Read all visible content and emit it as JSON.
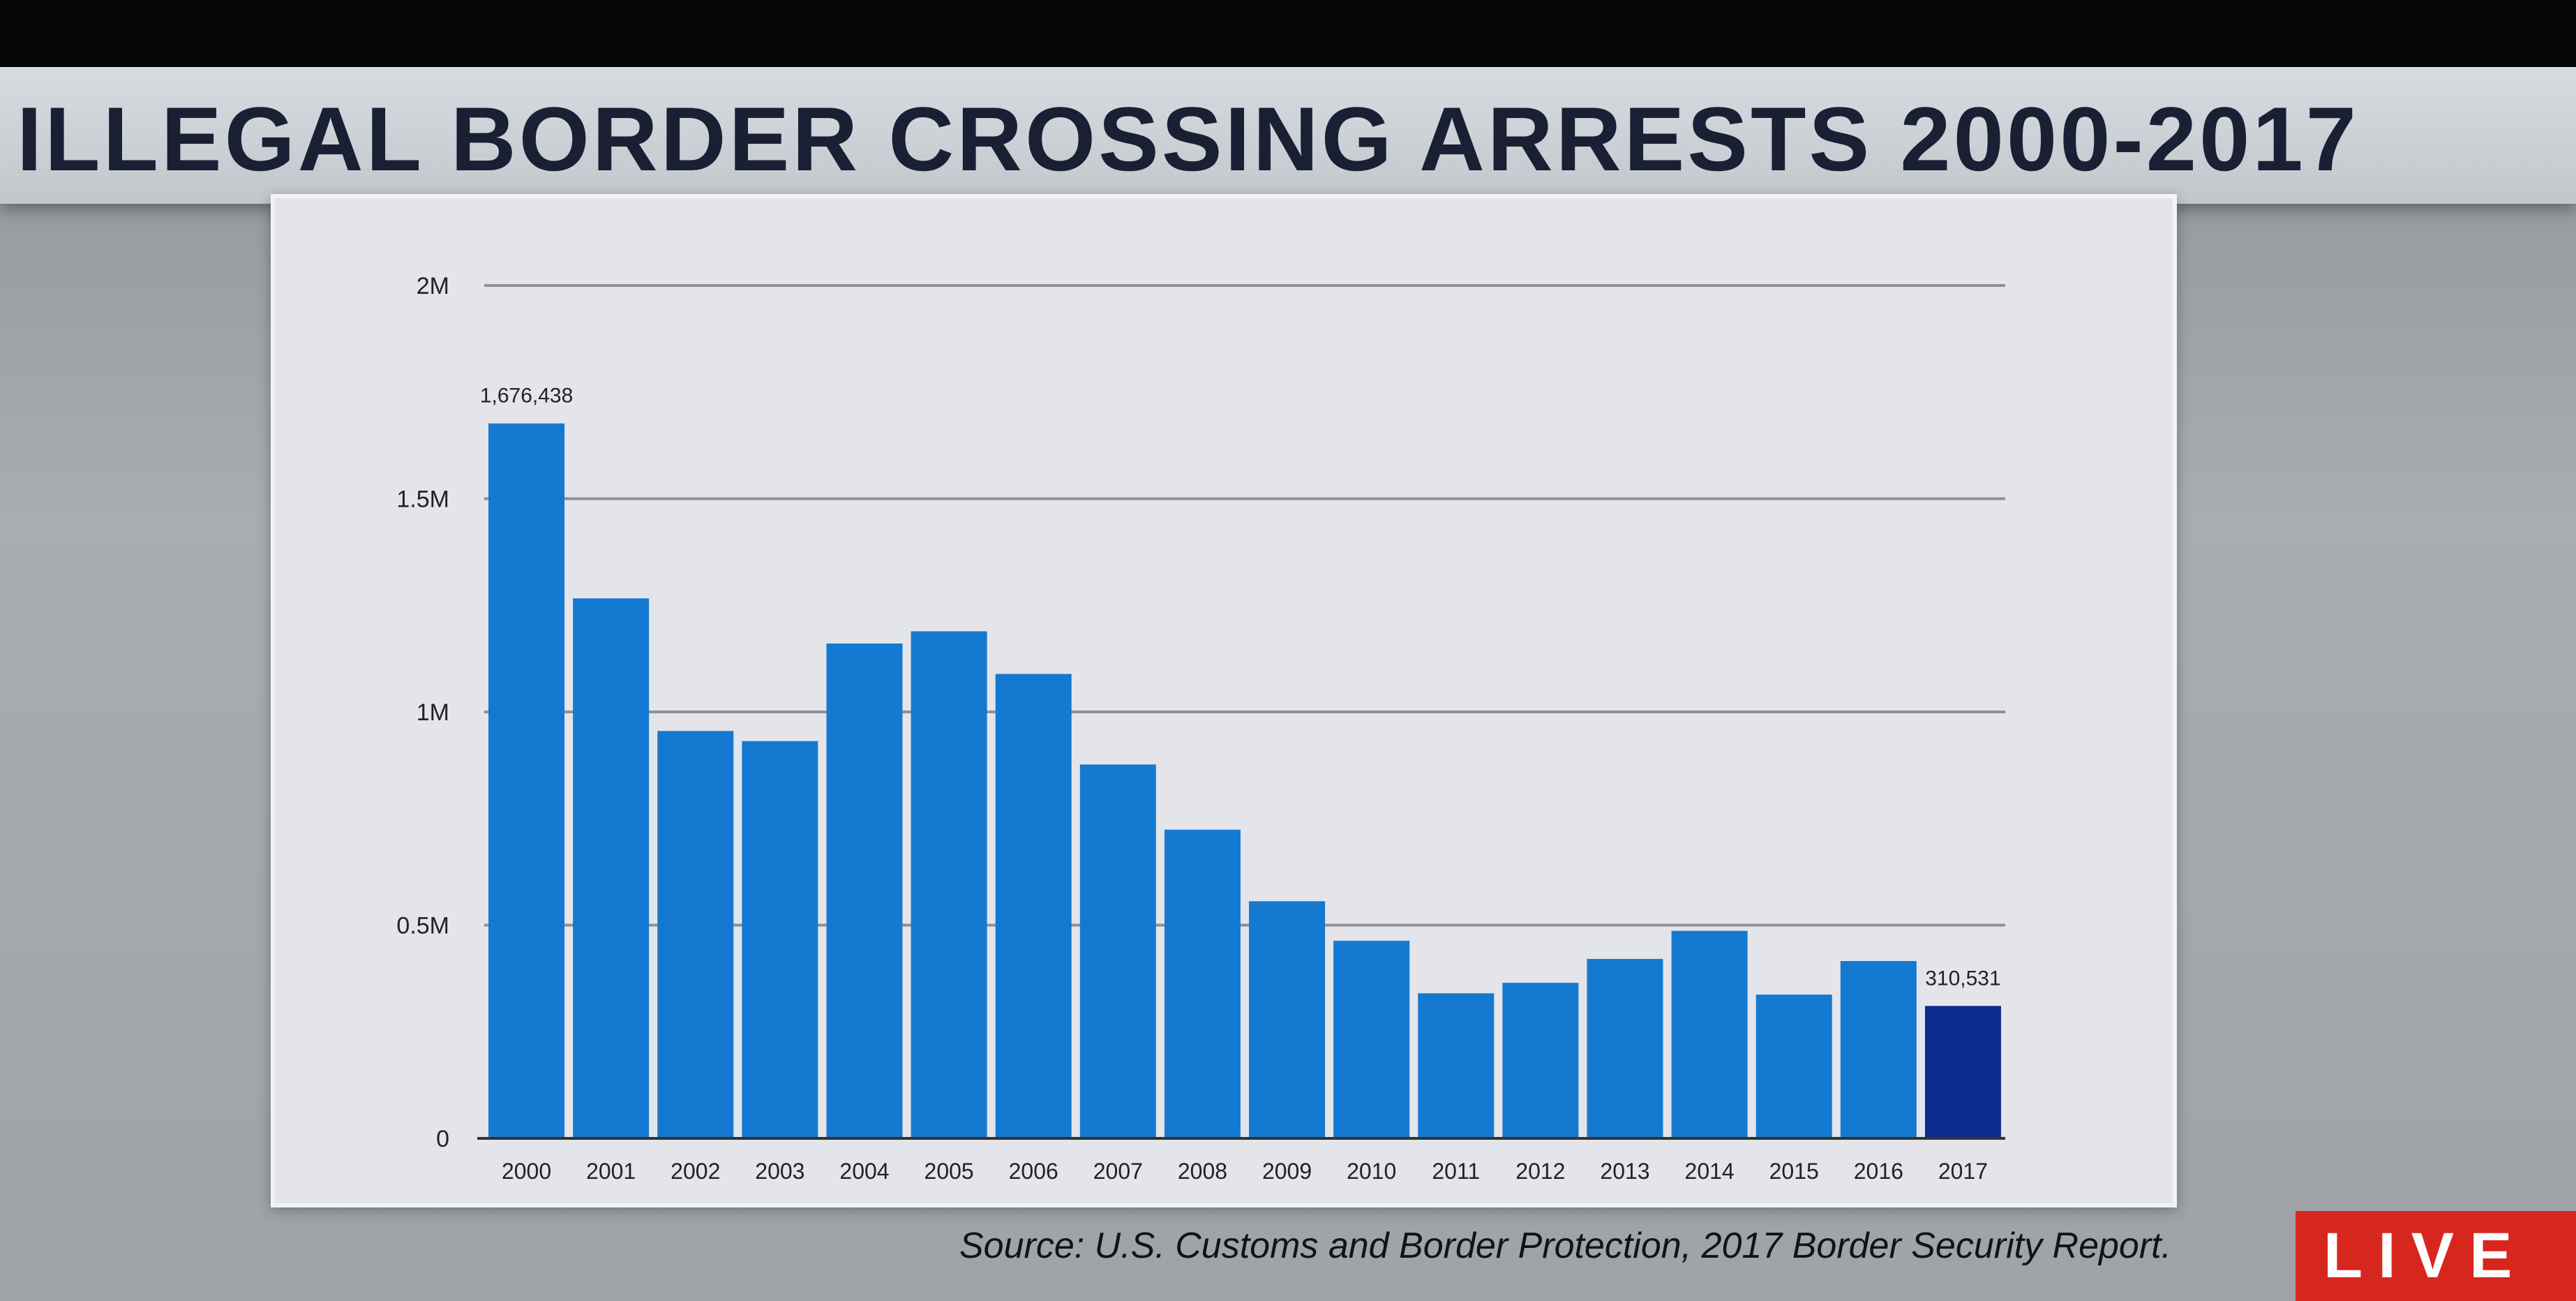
{
  "chart_data": {
    "type": "bar",
    "title": "ILLEGAL BORDER CROSSING ARRESTS 2000-2017",
    "xlabel": "",
    "ylabel": "",
    "ylim": [
      0,
      2000000
    ],
    "yticks": [
      0,
      500000,
      1000000,
      1500000,
      2000000
    ],
    "ytick_labels": [
      "0",
      "0.5M",
      "1M",
      "1.5M",
      "2M"
    ],
    "grid": true,
    "categories": [
      "2000",
      "2001",
      "2002",
      "2003",
      "2004",
      "2005",
      "2006",
      "2007",
      "2008",
      "2009",
      "2010",
      "2011",
      "2012",
      "2013",
      "2014",
      "2015",
      "2016",
      "2017"
    ],
    "values": [
      1676438,
      1266214,
      955310,
      931557,
      1160395,
      1189075,
      1089092,
      876704,
      723825,
      556041,
      463382,
      340252,
      364768,
      420789,
      486651,
      337117,
      415816,
      310531
    ],
    "data_labels": {
      "0": "1,676,438",
      "17": "310,531"
    },
    "colors": {
      "bar": "#1479d0",
      "highlight": "#0d2a8f"
    },
    "highlight_index": 17
  },
  "source": "Source: U.S. Customs and Border Protection, 2017 Border Security Report.",
  "live_badge": "LIVE"
}
